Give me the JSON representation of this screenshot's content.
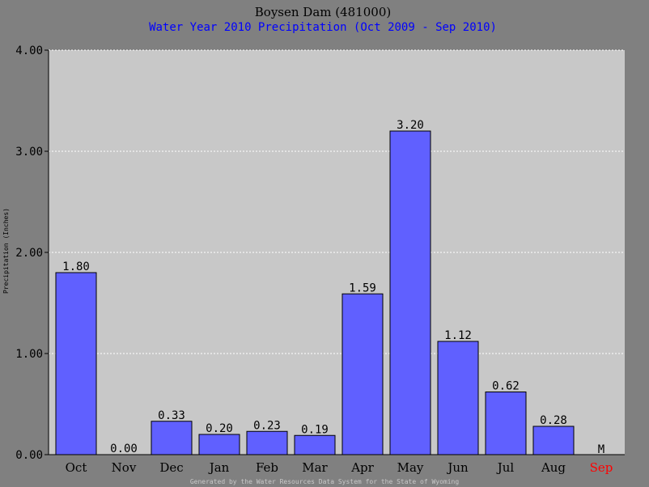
{
  "chart_data": {
    "type": "bar",
    "title": "Boysen Dam (481000)",
    "subtitle": "Water Year 2010 Precipitation (Oct 2009 - Sep 2010)",
    "ylabel": "Precipitation (Inches)",
    "xlabel": "",
    "categories": [
      "Oct",
      "Nov",
      "Dec",
      "Jan",
      "Feb",
      "Mar",
      "Apr",
      "May",
      "Jun",
      "Jul",
      "Aug",
      "Sep"
    ],
    "values": [
      1.8,
      0.0,
      0.33,
      0.2,
      0.23,
      0.19,
      1.59,
      3.2,
      1.12,
      0.62,
      0.28,
      null
    ],
    "value_labels": [
      "1.80",
      "0.00",
      "0.33",
      "0.20",
      "0.23",
      "0.19",
      "1.59",
      "3.20",
      "1.12",
      "0.62",
      "0.28",
      "M"
    ],
    "ylim": [
      0,
      4.0
    ],
    "yticks": [
      "0.00",
      "1.00",
      "2.00",
      "3.00",
      "4.00"
    ],
    "grid": true,
    "footer": "Generated by the Water Resources Data System for the State of Wyoming",
    "colors": {
      "background": "#808080",
      "plot_area": "#c8c8c8",
      "bar": "#6060ff",
      "subtitle": "#0000ff",
      "missing": "#ff0000",
      "grid": "#ffffff"
    }
  }
}
